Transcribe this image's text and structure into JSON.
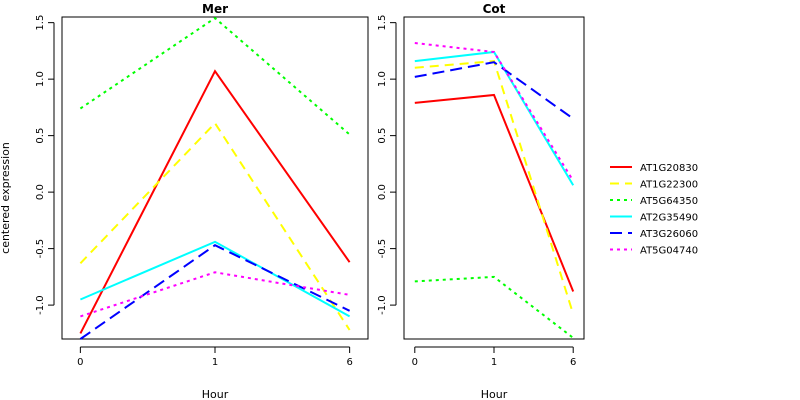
{
  "colors": {
    "AT1G20830": "#ff0000",
    "AT1G22300": "#ffff00",
    "AT5G64350": "#00ff00",
    "AT2G35490": "#00ffff",
    "AT3G26060": "#0000ff",
    "AT5G04740": "#ff00ff"
  },
  "legend": {
    "placement": "right",
    "entries": [
      "AT1G20830",
      "AT1G22300",
      "AT5G64350",
      "AT2G35490",
      "AT3G26060",
      "AT5G04740"
    ]
  },
  "chart_data": [
    {
      "type": "line",
      "title": "Mer",
      "xlabel": "Hour",
      "ylabel": "centered expression",
      "categories": [
        "0",
        "1",
        "6"
      ],
      "yticks": [
        "-1.0",
        "-0.5",
        "0.0",
        "0.5",
        "1.0",
        "1.5"
      ],
      "ylim": [
        -1.3,
        1.55
      ],
      "grid": false,
      "series": [
        {
          "name": "AT1G20830",
          "color": "#ff0000",
          "dash": "solid",
          "values": [
            -1.25,
            1.07,
            -0.62
          ]
        },
        {
          "name": "AT1G22300",
          "color": "#ffff00",
          "dash": "dashed",
          "values": [
            -0.63,
            0.61,
            -1.22
          ]
        },
        {
          "name": "AT5G64350",
          "color": "#00ff00",
          "dash": "dotted",
          "values": [
            0.74,
            1.54,
            0.51
          ]
        },
        {
          "name": "AT2G35490",
          "color": "#00ffff",
          "dash": "solid",
          "values": [
            -0.95,
            -0.44,
            -1.1
          ]
        },
        {
          "name": "AT3G26060",
          "color": "#0000ff",
          "dash": "longdash",
          "values": [
            -1.3,
            -0.47,
            -1.05
          ]
        },
        {
          "name": "AT5G04740",
          "color": "#ff00ff",
          "dash": "dotted",
          "values": [
            -1.1,
            -0.71,
            -0.91
          ]
        }
      ]
    },
    {
      "type": "line",
      "title": "Cot",
      "xlabel": "Hour",
      "ylabel": "",
      "categories": [
        "0",
        "1",
        "6"
      ],
      "yticks": [
        "-1.0",
        "-0.5",
        "0.0",
        "0.5",
        "1.0",
        "1.5"
      ],
      "ylim": [
        -1.3,
        1.55
      ],
      "grid": false,
      "series": [
        {
          "name": "AT1G20830",
          "color": "#ff0000",
          "dash": "solid",
          "values": [
            0.79,
            0.86,
            -0.88
          ]
        },
        {
          "name": "AT1G22300",
          "color": "#ffff00",
          "dash": "dashed",
          "values": [
            1.1,
            1.16,
            -1.08
          ]
        },
        {
          "name": "AT5G64350",
          "color": "#00ff00",
          "dash": "dotted",
          "values": [
            -0.79,
            -0.75,
            -1.29
          ]
        },
        {
          "name": "AT2G35490",
          "color": "#00ffff",
          "dash": "solid",
          "values": [
            1.16,
            1.24,
            0.06
          ]
        },
        {
          "name": "AT3G26060",
          "color": "#0000ff",
          "dash": "longdash",
          "values": [
            1.02,
            1.15,
            0.65
          ]
        },
        {
          "name": "AT5G04740",
          "color": "#ff00ff",
          "dash": "dotted",
          "values": [
            1.32,
            1.24,
            0.1
          ]
        }
      ]
    }
  ]
}
